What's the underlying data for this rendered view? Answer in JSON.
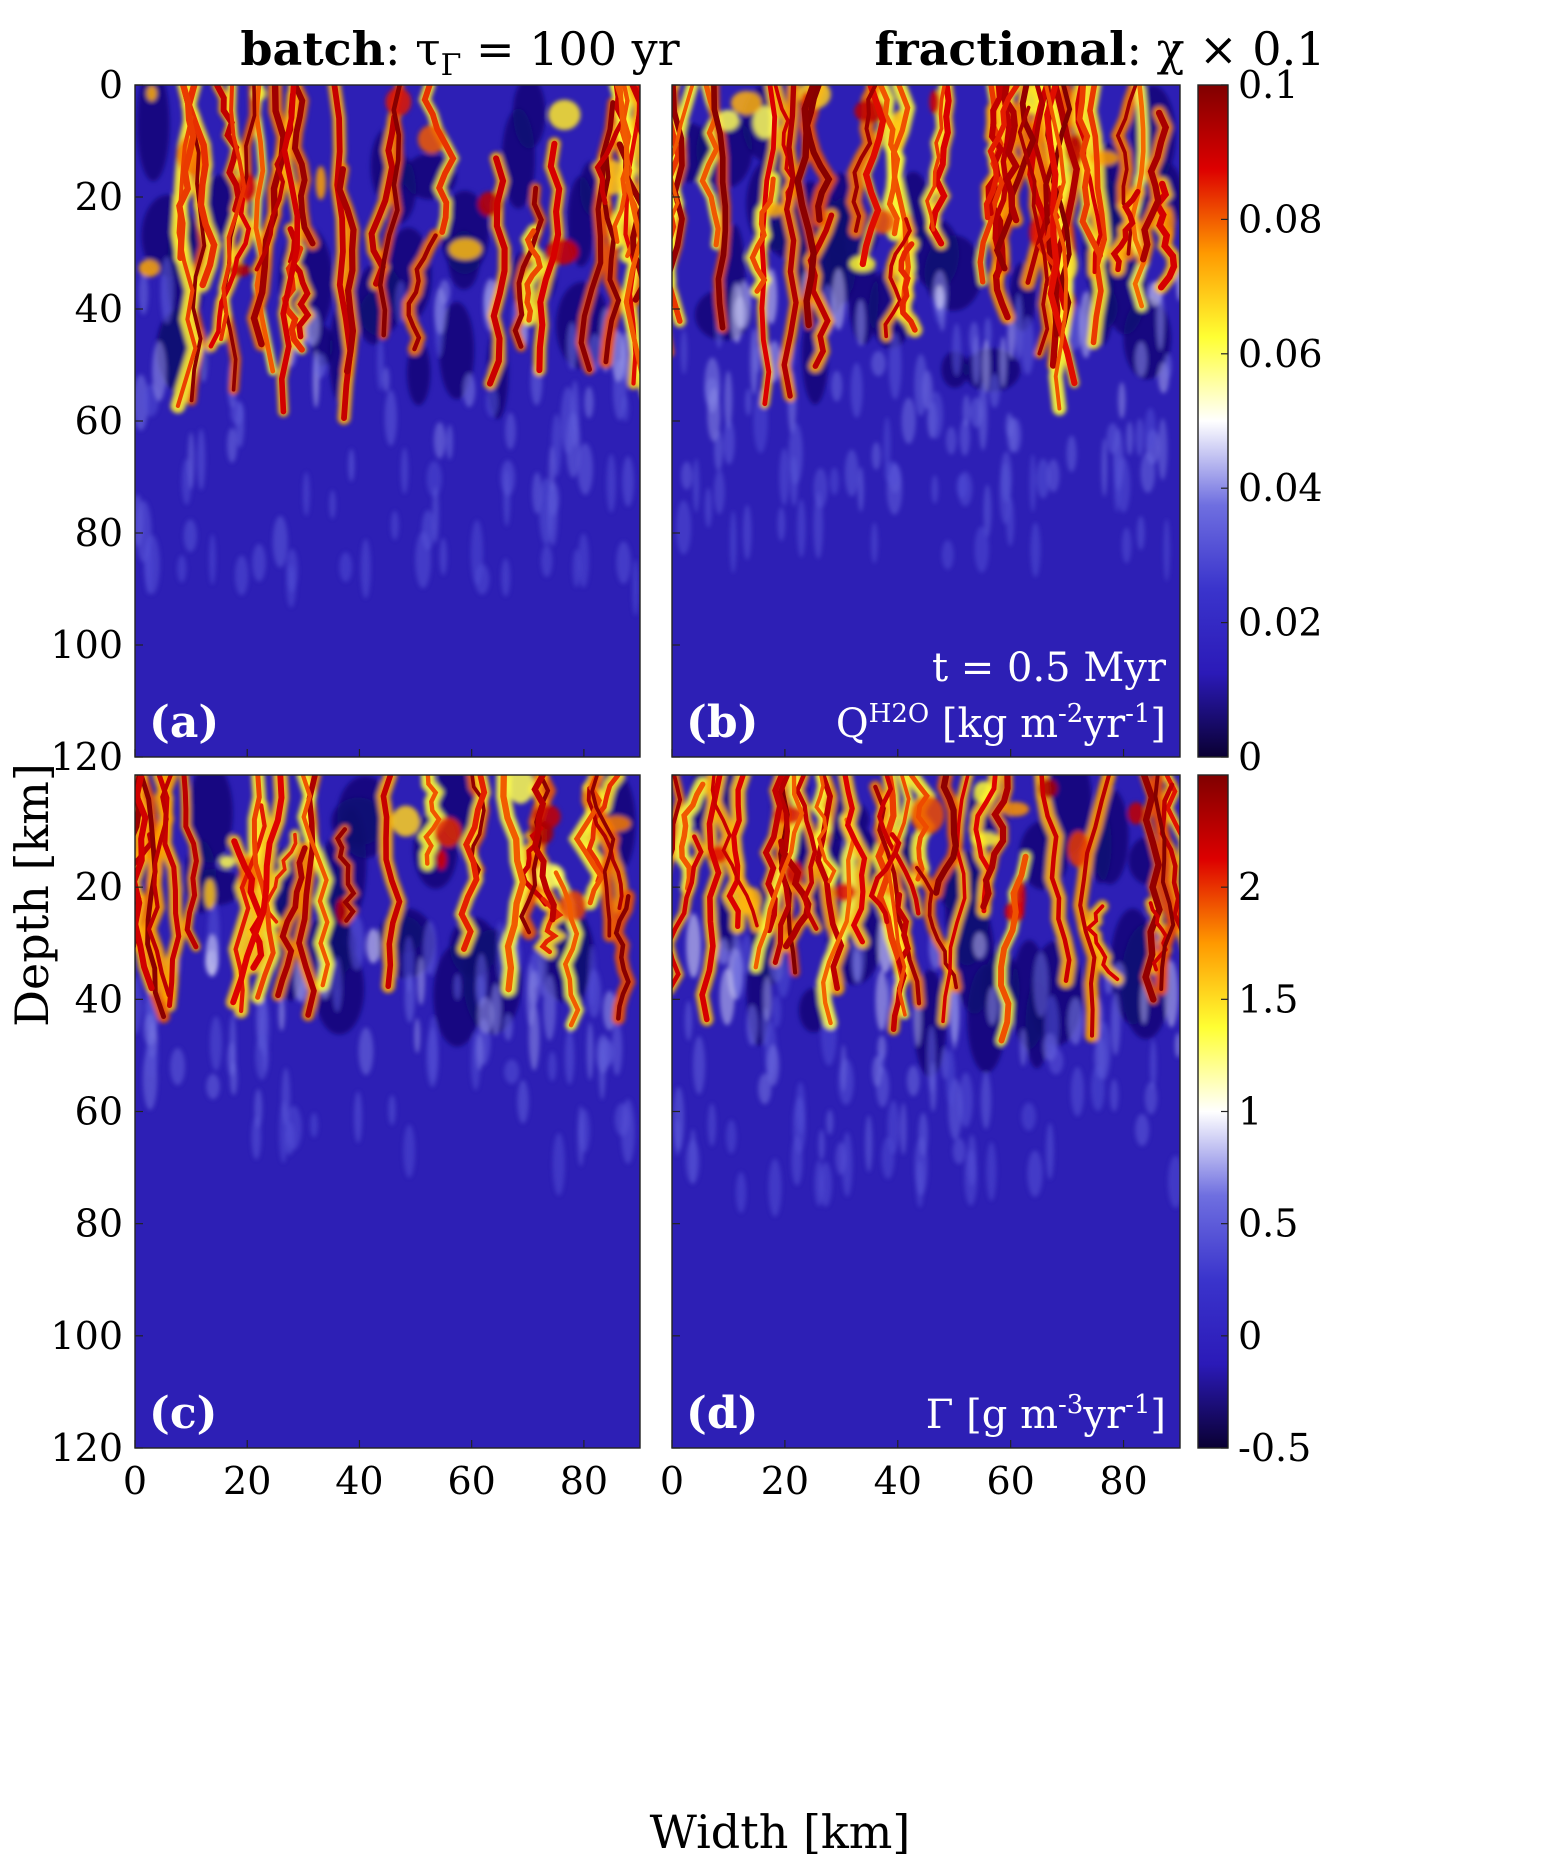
{
  "figure": {
    "col_titles": [
      {
        "bold": "batch",
        "rest": ": τ",
        "sub": "Γ",
        "tail": " = 100 yr"
      },
      {
        "bold": "fractional",
        "rest": ": χ × 0.1",
        "sub": "",
        "tail": ""
      }
    ],
    "xlabel": "Width [km]",
    "ylabel": "Depth [km]"
  },
  "chart_data": [
    {
      "type": "heatmap",
      "panel": "(a)",
      "field": "Q_H2O",
      "column": "batch: τΓ = 100 yr",
      "x_range": [
        0,
        90
      ],
      "y_range": [
        0,
        120
      ],
      "xticks": [],
      "yticks": [
        0,
        20,
        40,
        60,
        80,
        100,
        120
      ],
      "clim": [
        0,
        0.1
      ],
      "profile": {
        "active_until_depth": 60,
        "fade_until_depth": 90,
        "bands": [
          0,
          0.1,
          0.02
        ]
      },
      "seed": 11,
      "streak_density": 1.0
    },
    {
      "type": "heatmap",
      "panel": "(b)",
      "field": "Q_H2O",
      "column": "fractional: χ × 0.1",
      "annotation_1": "t = 0.5 Myr",
      "annotation_2": "Q^{H2O} [kg m^{-2}yr^{-1}]",
      "x_range": [
        0,
        90
      ],
      "y_range": [
        0,
        120
      ],
      "clim": [
        0,
        0.1
      ],
      "profile": {
        "active_until_depth": 58,
        "fade_until_depth": 85
      },
      "seed": 23,
      "streak_density": 1.3
    },
    {
      "type": "heatmap",
      "panel": "(c)",
      "field": "Gamma",
      "column": "batch: τΓ = 100 yr",
      "x_range": [
        0,
        90
      ],
      "y_range": [
        0,
        120
      ],
      "xticks": [
        0,
        20,
        40,
        60,
        80
      ],
      "yticks": [
        20,
        40,
        60,
        80,
        100,
        120
      ],
      "clim": [
        -0.5,
        2.5
      ],
      "profile": {
        "active_until_depth": 45,
        "fade_until_depth": 70
      },
      "seed": 37,
      "streak_density": 0.9
    },
    {
      "type": "heatmap",
      "panel": "(d)",
      "field": "Gamma",
      "column": "fractional: χ × 0.1",
      "annotation_1": "Γ [g m^{-3}yr^{-1}]",
      "x_range": [
        0,
        90
      ],
      "y_range": [
        0,
        120
      ],
      "xticks": [
        0,
        20,
        40,
        60,
        80
      ],
      "clim": [
        -0.5,
        2.5
      ],
      "profile": {
        "active_until_depth": 50,
        "fade_until_depth": 75
      },
      "seed": 51,
      "streak_density": 1.1
    }
  ],
  "colorbars": [
    {
      "name": "Q colorbar",
      "ticks": [
        "0",
        "0.02",
        "0.04",
        "0.06",
        "0.08",
        "0.1"
      ],
      "values": [
        0,
        0.02,
        0.04,
        0.06,
        0.08,
        0.1
      ],
      "lim": [
        0,
        0.1
      ]
    },
    {
      "name": "Gamma colorbar",
      "ticks": [
        "-0.5",
        "0",
        "0.5",
        "1",
        "1.5",
        "2"
      ],
      "values": [
        -0.5,
        0,
        0.5,
        1,
        1.5,
        2
      ],
      "lim": [
        -0.5,
        2.5
      ]
    }
  ],
  "colormap": [
    "#0a0033",
    "#2b1ab8",
    "#3a34cc",
    "#6f6fe0",
    "#ffffff",
    "#ffff33",
    "#ff9900",
    "#dd0000",
    "#800000"
  ]
}
